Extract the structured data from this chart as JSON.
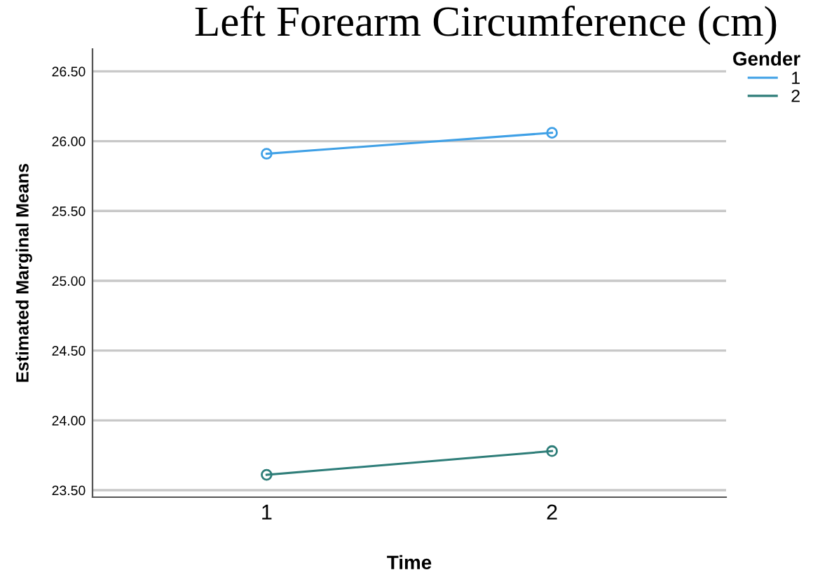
{
  "chart_data": {
    "type": "line",
    "title": "Left Forearm Circumference (cm)",
    "xlabel": "Time",
    "ylabel": "Estimated Marginal Means",
    "legend_title": "Gender",
    "categories": [
      "1",
      "2"
    ],
    "series": [
      {
        "name": "1",
        "color": "#3fa0e6",
        "values": [
          25.91,
          26.06
        ]
      },
      {
        "name": "2",
        "color": "#2e7d78",
        "values": [
          23.61,
          23.78
        ]
      }
    ],
    "ylim": [
      23.45,
      26.66
    ],
    "yticks": [
      {
        "value": 23.5,
        "label": "23.50"
      },
      {
        "value": 24.0,
        "label": "24.00"
      },
      {
        "value": 24.5,
        "label": "24.50"
      },
      {
        "value": 25.0,
        "label": "25.00"
      },
      {
        "value": 25.5,
        "label": "25.50"
      },
      {
        "value": 26.0,
        "label": "26.00"
      },
      {
        "value": 26.5,
        "label": "26.50"
      }
    ],
    "grid": "y",
    "legend": "top right",
    "marker": "circle",
    "line_style": "solid"
  }
}
